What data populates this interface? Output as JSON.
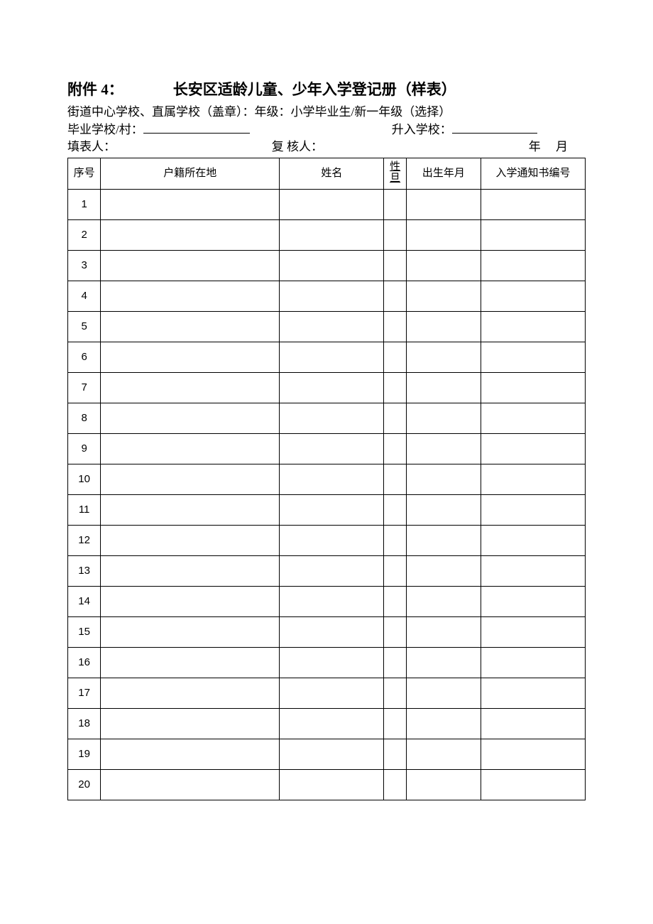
{
  "header": {
    "attachment_label": "附件 4：",
    "main_title": "长安区适龄儿童、少年入学登记册（样表）"
  },
  "info": {
    "line1": "街道中心学校、直属学校（盖章）：年级：小学毕业生/新一年级（选择）",
    "grad_school_label": "毕业学校/村：",
    "enter_school_label": "升入学校：",
    "filler_label": "填表人：",
    "reviewer_label": "复 核人：",
    "year_char": "年",
    "month_char": "月"
  },
  "table": {
    "columns": [
      {
        "label": "序号",
        "class": "col-seq"
      },
      {
        "label": "户籍所在地",
        "class": "col-huji"
      },
      {
        "label": "姓名",
        "class": "col-name"
      },
      {
        "label": "性旦",
        "class": "col-sex",
        "vertical": true
      },
      {
        "label": "出生年月",
        "class": "col-birth"
      },
      {
        "label": "入学通知书编号",
        "class": "col-notice"
      }
    ],
    "row_count": 20,
    "colors": {
      "border": "#000000",
      "background": "#ffffff",
      "text": "#000000"
    }
  }
}
